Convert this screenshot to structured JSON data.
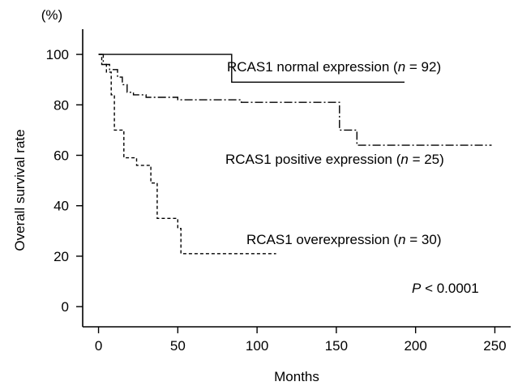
{
  "chart_data": {
    "type": "line",
    "title": "",
    "xlabel": "Months",
    "ylabel": "Overall survival rate",
    "y_unit": "(%)",
    "xlim": [
      -10,
      260
    ],
    "ylim": [
      -8,
      110
    ],
    "xticks": [
      0,
      50,
      100,
      150,
      200,
      250
    ],
    "yticks": [
      0,
      20,
      40,
      60,
      80,
      100
    ],
    "grid": false,
    "legend": "none",
    "series": [
      {
        "label_prefix": "RCAS1 normal expression (",
        "label_n": "n",
        "label_suffix": " = 92)",
        "dash": "",
        "steps": [
          [
            0,
            100
          ],
          [
            84,
            100
          ],
          [
            84,
            89
          ],
          [
            193,
            89
          ]
        ]
      },
      {
        "label_prefix": "RCAS1 positive expression (",
        "label_n": "n",
        "label_suffix": " = 25)",
        "dash": "10 3 2 3",
        "steps": [
          [
            0,
            100
          ],
          [
            3,
            100
          ],
          [
            3,
            96
          ],
          [
            7,
            96
          ],
          [
            7,
            94
          ],
          [
            12,
            94
          ],
          [
            12,
            91
          ],
          [
            15,
            91
          ],
          [
            15,
            88
          ],
          [
            18,
            88
          ],
          [
            18,
            85
          ],
          [
            22,
            85
          ],
          [
            22,
            84
          ],
          [
            30,
            84
          ],
          [
            30,
            83
          ],
          [
            50,
            83
          ],
          [
            50,
            82
          ],
          [
            90,
            82
          ],
          [
            90,
            81
          ],
          [
            152,
            81
          ],
          [
            152,
            70
          ],
          [
            163,
            70
          ],
          [
            163,
            64
          ],
          [
            248,
            64
          ]
        ]
      },
      {
        "label_prefix": "RCAS1 overexpression (",
        "label_n": "n",
        "label_suffix": " = 30)",
        "dash": "4 3",
        "steps": [
          [
            0,
            100
          ],
          [
            2,
            100
          ],
          [
            2,
            96
          ],
          [
            5,
            96
          ],
          [
            5,
            93
          ],
          [
            8,
            93
          ],
          [
            8,
            84
          ],
          [
            10,
            84
          ],
          [
            10,
            70
          ],
          [
            16,
            70
          ],
          [
            16,
            59
          ],
          [
            24,
            59
          ],
          [
            24,
            56
          ],
          [
            33,
            56
          ],
          [
            33,
            49
          ],
          [
            37,
            49
          ],
          [
            37,
            35
          ],
          [
            50,
            35
          ],
          [
            50,
            31
          ],
          [
            52,
            31
          ],
          [
            52,
            21
          ],
          [
            112,
            21
          ]
        ]
      }
    ],
    "annotation": {
      "prefix": "P",
      "text": " < 0.0001"
    }
  }
}
